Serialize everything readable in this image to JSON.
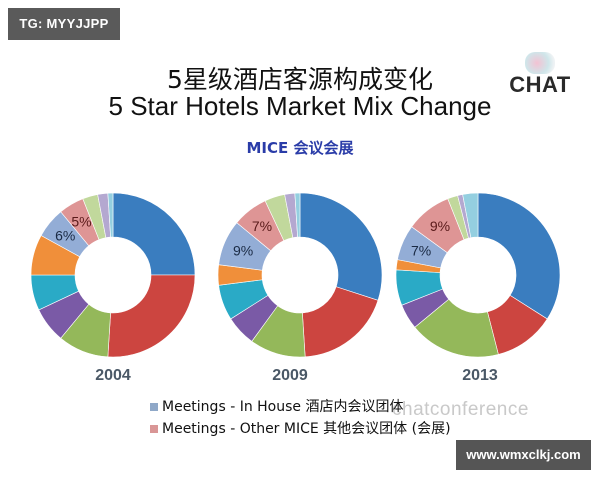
{
  "badges": {
    "top_left": "TG: MYYJJPP",
    "bottom_right": "www.wmxclkj.com"
  },
  "header": {
    "title_cn": "5星级酒店客源构成变化",
    "title_en": "5 Star Hotels Market Mix Change",
    "subtitle": "MICE 会议会展",
    "logo_text": "CHAT"
  },
  "watermark": "chatconference",
  "legend": [
    {
      "label": "Meetings - In House 酒店内会议团体",
      "color": "#8fa8c8"
    },
    {
      "label": "Meetings - Other MICE 其他会议团体 (会展)",
      "color": "#d99696"
    }
  ],
  "chart_data": {
    "type": "pie",
    "variant": "donut",
    "title": "5 Star Hotels Market Mix Change",
    "subtitle": "MICE 会议会展",
    "segment_colors": [
      "#3a7dbf",
      "#cc4540",
      "#94b85a",
      "#7a5aa6",
      "#2aaac6",
      "#f08f3a",
      "#93add6",
      "#de9595",
      "#c1d89c",
      "#b4a8d0",
      "#94cfe0"
    ],
    "segment_names": [
      "Segment 1",
      "Segment 2",
      "Segment 3",
      "Segment 4",
      "Segment 5",
      "Segment 6",
      "Meetings - In House",
      "Meetings - Other MICE",
      "Segment 9",
      "Segment 10",
      "Segment 11"
    ],
    "labeled_segments": [
      "Meetings - In House",
      "Meetings - Other MICE"
    ],
    "series": [
      {
        "name": "2004",
        "values": [
          25,
          26,
          10,
          7,
          7,
          8,
          6,
          5,
          3,
          2,
          1
        ],
        "labels": {
          "6": "6%",
          "7": "5%"
        }
      },
      {
        "name": "2009",
        "values": [
          30,
          19,
          11,
          6,
          7,
          4,
          9,
          7,
          4,
          2,
          1
        ],
        "labels": {
          "6": "9%",
          "7": "7%"
        }
      },
      {
        "name": "2013",
        "values": [
          34,
          12,
          18,
          5,
          7,
          2,
          7,
          9,
          2,
          1,
          3
        ],
        "labels": {
          "6": "7%",
          "7": "9%"
        }
      }
    ],
    "approx_note": "unlabeled segment values estimated from arc angles",
    "legend_position": "bottom"
  },
  "years": [
    "2004",
    "2009",
    "2013"
  ]
}
